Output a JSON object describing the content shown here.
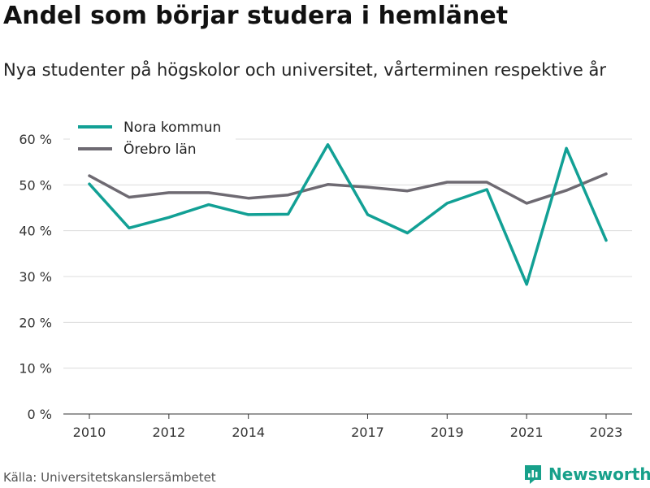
{
  "header": {
    "title": "Andel som börjar studera i hemlänet",
    "subtitle": "Nya studenter på högskolor och universitet, vårterminen respektive år"
  },
  "footer": {
    "source": "Källa: Universitetskanslersämbetet",
    "brand": "Newsworthy"
  },
  "colors": {
    "nora": "#12a095",
    "orebro": "#6e6a72",
    "grid": "#dcdcdc",
    "axis": "#333333",
    "brand": "#17a08a"
  },
  "chart_data": {
    "type": "line",
    "title": "Andel som börjar studera i hemlänet",
    "subtitle": "Nya studenter på högskolor och universitet, vårterminen respektive år",
    "x": [
      2010,
      2011,
      2012,
      2013,
      2014,
      2015,
      2016,
      2017,
      2018,
      2019,
      2020,
      2021,
      2022,
      2023
    ],
    "x_ticks": [
      2010,
      2012,
      2014,
      2017,
      2019,
      2021,
      2023
    ],
    "y_ticks": [
      0,
      10,
      20,
      30,
      40,
      50,
      60
    ],
    "y_tick_suffix": " %",
    "ylim": [
      0,
      62
    ],
    "grid": true,
    "legend_position": "top-left",
    "series": [
      {
        "name": "Nora kommun",
        "color": "#12a095",
        "values": [
          50.2,
          40.6,
          42.9,
          45.7,
          43.5,
          43.6,
          58.8,
          43.5,
          39.5,
          46.0,
          49.0,
          28.3,
          58.0,
          37.9
        ]
      },
      {
        "name": "Örebro län",
        "color": "#6e6a72",
        "values": [
          52.0,
          47.3,
          48.3,
          48.3,
          47.1,
          47.8,
          50.1,
          49.5,
          48.7,
          50.6,
          50.6,
          46.0,
          48.8,
          52.4
        ]
      }
    ]
  }
}
